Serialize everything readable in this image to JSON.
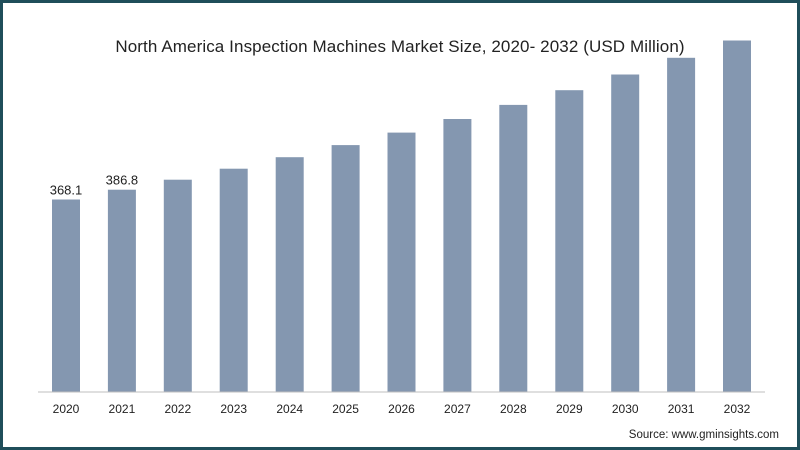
{
  "chart_data": {
    "type": "bar",
    "title": "North America Inspection Machines Market Size, 2020- 2032 (USD Million)",
    "categories": [
      "2020",
      "2021",
      "2022",
      "2023",
      "2024",
      "2025",
      "2026",
      "2027",
      "2028",
      "2029",
      "2030",
      "2031",
      "2032"
    ],
    "values": [
      368.1,
      386.8,
      406,
      427,
      449,
      472,
      496,
      522,
      549,
      577,
      607,
      639,
      672
    ],
    "data_labels": [
      "368.1",
      "386.8",
      "",
      "",
      "",
      "",
      "",
      "",
      "",
      "",
      "",
      "",
      ""
    ],
    "ylim": [
      0,
      717
    ],
    "grid": false,
    "bar_color": "#8497b0",
    "axis_color": "#bfbfbf"
  },
  "source": "Source: www.gminsights.com"
}
